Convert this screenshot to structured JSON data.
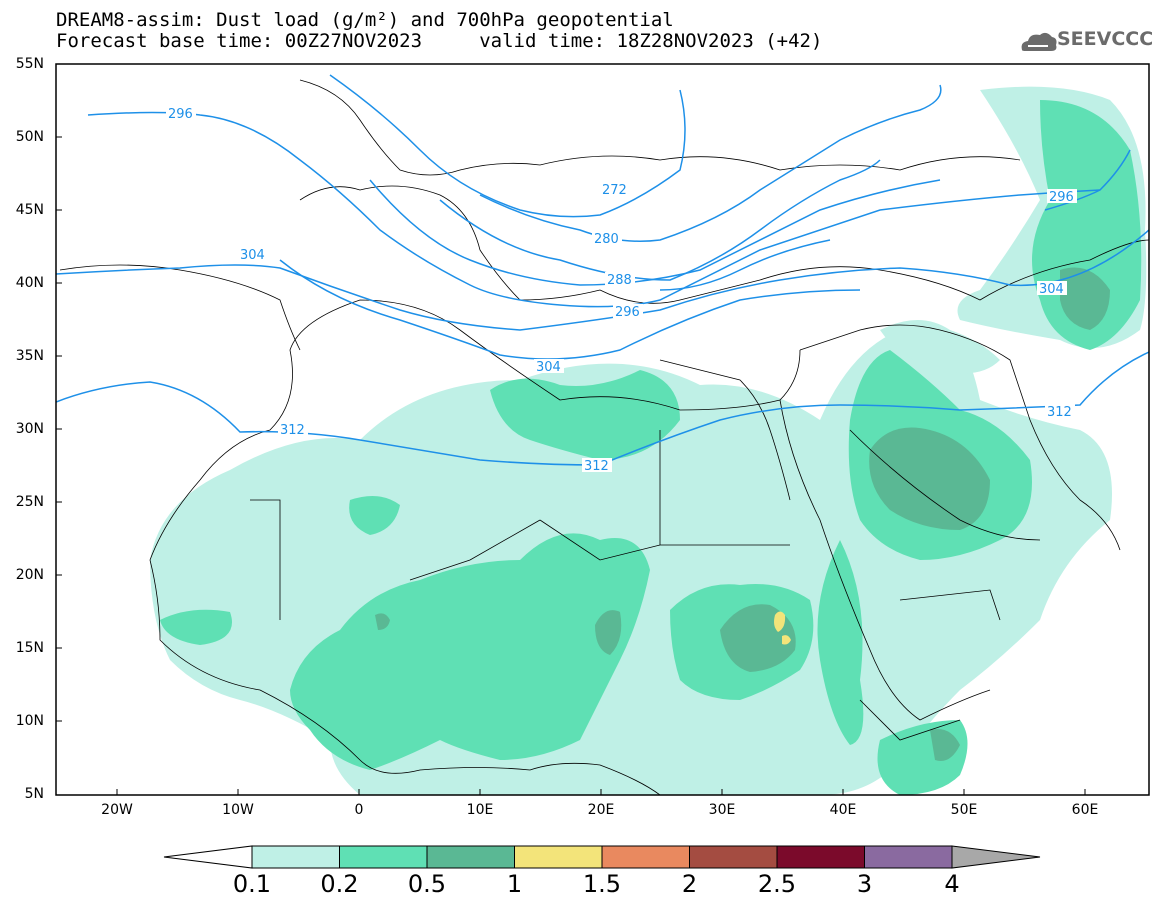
{
  "title": {
    "line1": "DREAM8-assim: Dust load (g/m²) and 700hPa geopotential",
    "line2": "Forecast base time: 00Z27NOV2023     valid time: 18Z28NOV2023 (+42)"
  },
  "logo": {
    "text": "SEEVCCC",
    "icon": "cloud-logo-icon"
  },
  "map": {
    "lat_labels": [
      "55N",
      "50N",
      "45N",
      "40N",
      "35N",
      "30N",
      "25N",
      "20N",
      "15N",
      "10N",
      "5N"
    ],
    "lon_labels": [
      "20W",
      "10W",
      "0",
      "10E",
      "20E",
      "30E",
      "40E",
      "50E",
      "60E"
    ],
    "contour_labels": [
      "296",
      "272",
      "280",
      "288",
      "296",
      "304",
      "304",
      "312",
      "312",
      "296",
      "304",
      "312"
    ],
    "contour_color": "#1e90e8"
  },
  "colorbar": {
    "levels": [
      "0.1",
      "0.2",
      "0.5",
      "1",
      "1.5",
      "2",
      "2.5",
      "3",
      "4"
    ],
    "colors": [
      "#bff0e6",
      "#5fe0b4",
      "#5ab894",
      "#f3e47a",
      "#e9895f",
      "#a44c41",
      "#7b0a2b",
      "#8a6aa0"
    ],
    "under_color": "#ffffff",
    "over_color": "#a8a8a8"
  }
}
